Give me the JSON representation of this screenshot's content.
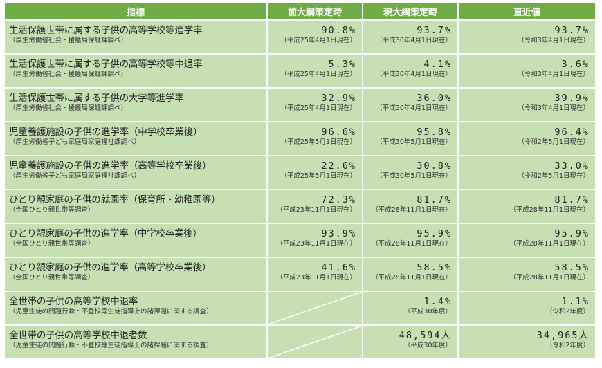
{
  "table": {
    "headers": [
      "指標",
      "前大綱策定時",
      "現大綱策定時",
      "直近値"
    ],
    "rows": [
      {
        "indicator": "生活保護世帯に属する子供の高等学校等進学率",
        "source": "（厚生労働省社会・援護局保護課調べ）",
        "prev": {
          "value": "90.8%",
          "date": "（平成25年4月1日現在）"
        },
        "current": {
          "value": "93.7%",
          "date": "（平成30年4月1日現在）"
        },
        "latest": {
          "value": "93.7%",
          "date": "（令和3年4月1日現在）"
        }
      },
      {
        "indicator": "生活保護世帯に属する子供の高等学校等中退率",
        "source": "（厚生労働省社会・援護局保護課調べ）",
        "prev": {
          "value": "5.3%",
          "date": "（平成25年4月1日現在）"
        },
        "current": {
          "value": "4.1%",
          "date": "（平成30年4月1日現在）"
        },
        "latest": {
          "value": "3.6%",
          "date": "（令和3年4月1日現在）"
        }
      },
      {
        "indicator": "生活保護世帯に属する子供の大学等進学率",
        "source": "（厚生労働省社会・援護局保護課調べ）",
        "prev": {
          "value": "32.9%",
          "date": "（平成25年4月1日現在）"
        },
        "current": {
          "value": "36.0%",
          "date": "（平成30年4月1日現在）"
        },
        "latest": {
          "value": "39.9%",
          "date": "（令和3年4月1日現在）"
        }
      },
      {
        "indicator": "児童養護施設の子供の進学率（中学校卒業後）",
        "source": "（厚生労働省子ども家庭局家庭福祉課調べ）",
        "prev": {
          "value": "96.6%",
          "date": "（平成25年5月1日現在）"
        },
        "current": {
          "value": "95.8%",
          "date": "（平成30年5月1日現在）"
        },
        "latest": {
          "value": "96.4%",
          "date": "（令和2年5月1日現在）"
        }
      },
      {
        "indicator": "児童養護施設の子供の進学率（高等学校卒業後）",
        "source": "（厚生労働省子ども家庭局家庭福祉課調べ）",
        "prev": {
          "value": "22.6%",
          "date": "（平成25年5月1日現在）"
        },
        "current": {
          "value": "30.8%",
          "date": "（平成30年5月1日現在）"
        },
        "latest": {
          "value": "33.0%",
          "date": "（令和2年5月1日現在）"
        }
      },
      {
        "indicator": "ひとり親家庭の子供の就園率（保育所・幼稚園等）",
        "source": "（全国ひとり親世帯等調査）",
        "prev": {
          "value": "72.3%",
          "date": "（平成23年11月1日現在）"
        },
        "current": {
          "value": "81.7%",
          "date": "（平成28年11月1日現在）"
        },
        "latest": {
          "value": "81.7%",
          "date": "（平成28年11月1日現在）"
        }
      },
      {
        "indicator": "ひとり親家庭の子供の進学率（中学校卒業後）",
        "source": "（全国ひとり親世帯等調査）",
        "prev": {
          "value": "93.9%",
          "date": "（平成23年11月1日現在）"
        },
        "current": {
          "value": "95.9%",
          "date": "（平成28年11月1日現在）"
        },
        "latest": {
          "value": "95.9%",
          "date": "（平成28年11月1日現在）"
        }
      },
      {
        "indicator": "ひとり親家庭の子供の進学率（高等学校卒業後）",
        "source": "（全国ひとり親世帯等調査）",
        "prev": {
          "value": "41.6%",
          "date": "（平成23年11月1日現在）"
        },
        "current": {
          "value": "58.5%",
          "date": "（平成28年11月1日現在）"
        },
        "latest": {
          "value": "58.5%",
          "date": "（平成28年11月1日現在）"
        }
      },
      {
        "indicator": "全世帯の子供の高等学校中退率",
        "source": "（児童生徒の問題行動・不登校等生徒指導上の諸課題に関する調査）",
        "prev": null,
        "current": {
          "value": "1.4%",
          "date": "（平成30年度）"
        },
        "latest": {
          "value": "1.1%",
          "date": "（令和2年度）"
        }
      },
      {
        "indicator": "全世帯の子供の高等学校中退者数",
        "source": "（児童生徒の問題行動・不登校等生徒指導上の諸課題に関する調査）",
        "prev": null,
        "current": {
          "value": "48,594人",
          "date": "（平成30年度）"
        },
        "latest": {
          "value": "34,965人",
          "date": "（令和2年度）"
        }
      }
    ]
  },
  "colors": {
    "header_bg": "#6fac46",
    "cell_bg": "#c6e0b4",
    "grid": "#ffffff"
  }
}
